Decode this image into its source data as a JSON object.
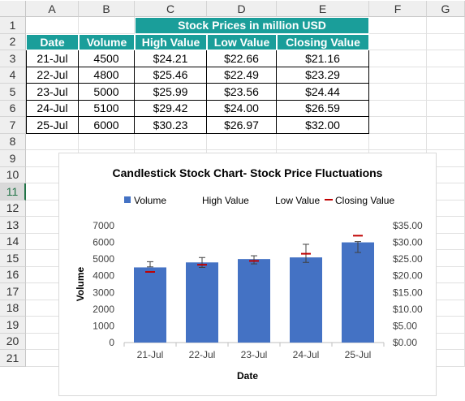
{
  "columns": [
    "A",
    "B",
    "C",
    "D",
    "E",
    "F",
    "G"
  ],
  "rows": [
    "1",
    "2",
    "3",
    "4",
    "5",
    "6",
    "7",
    "8",
    "9",
    "10",
    "11",
    "12",
    "13",
    "14",
    "15",
    "16",
    "17",
    "18",
    "19",
    "20",
    "21"
  ],
  "selected_row": "11",
  "table": {
    "group_header": "Stock Prices in million USD",
    "headers": [
      "Date",
      "Volume",
      "High Value",
      "Low Value",
      "Closing Value"
    ],
    "rows": [
      [
        "21-Jul",
        "4500",
        "$24.21",
        "$22.66",
        "$21.16"
      ],
      [
        "22-Jul",
        "4800",
        "$25.46",
        "$22.49",
        "$23.29"
      ],
      [
        "23-Jul",
        "5000",
        "$25.99",
        "$23.56",
        "$24.44"
      ],
      [
        "24-Jul",
        "5100",
        "$29.42",
        "$24.00",
        "$26.59"
      ],
      [
        "25-Jul",
        "6000",
        "$30.23",
        "$26.97",
        "$32.00"
      ]
    ]
  },
  "colors": {
    "header_fill": "#1a9e9a",
    "bar": "#4472c4",
    "close_marker": "#c00000",
    "whisker": "#404040"
  },
  "chart_data": {
    "type": "bar",
    "title": "Candlestick Stock Chart- Stock Price Fluctuations",
    "xlabel": "Date",
    "ylabel": "Volume",
    "y2label": "Stock Prices in million USD",
    "categories": [
      "21-Jul",
      "22-Jul",
      "23-Jul",
      "24-Jul",
      "25-Jul"
    ],
    "legend": [
      "Volume",
      "High Value",
      "Low Value",
      "Closing Value"
    ],
    "legend_position": "top",
    "ylim": [
      0,
      7000
    ],
    "y2lim": [
      0,
      35
    ],
    "yticks": [
      "0",
      "1000",
      "2000",
      "3000",
      "4000",
      "5000",
      "6000",
      "7000"
    ],
    "y2ticks": [
      "$0.00",
      "$5.00",
      "$10.00",
      "$15.00",
      "$20.00",
      "$25.00",
      "$30.00",
      "$35.00"
    ],
    "series": [
      {
        "name": "Volume",
        "values": [
          4500,
          4800,
          5000,
          5100,
          6000
        ]
      },
      {
        "name": "High Value",
        "values": [
          24.21,
          25.46,
          25.99,
          29.42,
          30.23
        ]
      },
      {
        "name": "Low Value",
        "values": [
          22.66,
          22.49,
          23.56,
          24.0,
          26.97
        ]
      },
      {
        "name": "Closing Value",
        "values": [
          21.16,
          23.29,
          24.44,
          26.59,
          32.0
        ]
      }
    ]
  }
}
